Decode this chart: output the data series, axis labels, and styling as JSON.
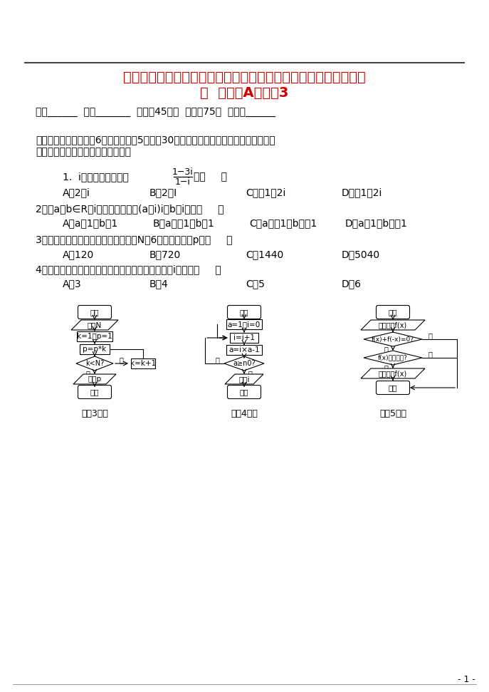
{
  "bg_color": "#ffffff",
  "title_line1": "四川省宜宾县第一中学校高考数学《算法初步、复数》专题训练试",
  "title_line2": "题  新人教A版必修3",
  "title_color": "#cc0000",
  "header_info": "班级______  姓名_______  时间：45分钟  分值：75分  总得分______",
  "section1": "一、选择题：本大题共6小题，每小题5分，共30分。在每小题给出的四个选项中，选出",
  "section1b": "符合题目要求的一项填在答题卡上．",
  "q1_pre": "1.  i是虚数单位，复数",
  "q1_frac_num": "1−3i",
  "q1_frac_den": "1−i",
  "q1_end": "＝（     ）",
  "q1_opts": [
    "A．2＋i",
    "B．2－I",
    "C．－1＋2i",
    "D．－1－2i"
  ],
  "q2": "2．若a，b∈R，i为虚数单位，且(a＋i)i＝b＋i，则（     ）",
  "q2_opts": [
    "A．a＝1，b＝1",
    "B．a＝－1，b＝1",
    "C．a＝－1，b＝－1",
    "D．a＝1，b＝－1"
  ],
  "q3": "3．执行如图的程序框图，如果输入的N是6，那么输出的p是（     ）",
  "q3_opts": [
    "A．120",
    "B．720",
    "C．1440",
    "D．5040"
  ],
  "q4": "4．阅读下面的程序框图，运行相应的程序，则输出i的值为（     ）",
  "q4_opts": [
    "A．3",
    "B．4",
    "C．5",
    "D．6"
  ],
  "label3": "（第3题）",
  "label4": "（第4题）",
  "label5": "（第5题）",
  "page_num": "- 1 -"
}
